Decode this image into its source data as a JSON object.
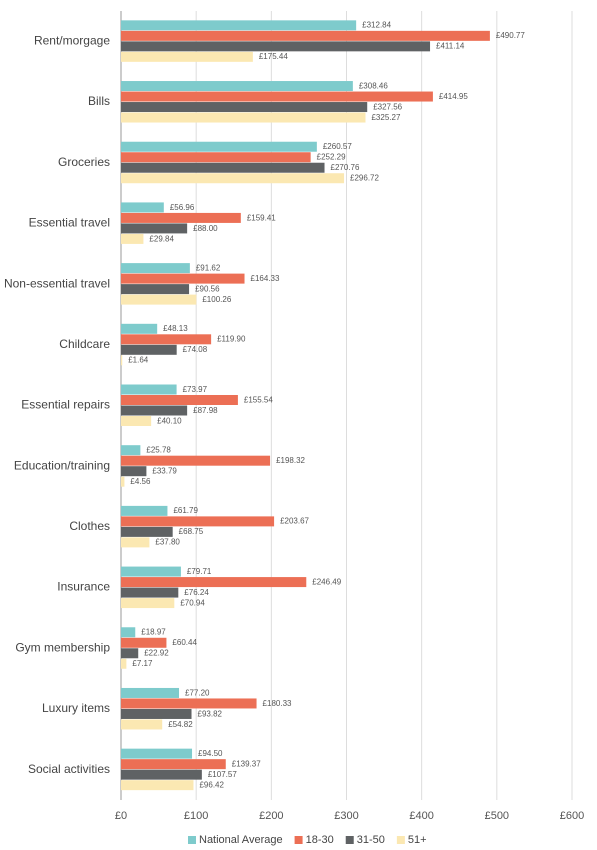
{
  "chart_data": {
    "type": "hbar",
    "categories": [
      "Rent/morgage",
      "Bills",
      "Groceries",
      "Essential travel",
      "Non-essential travel",
      "Childcare",
      "Essential repairs",
      "Education/training",
      "Clothes",
      "Insurance",
      "Gym membership",
      "Luxury items",
      "Social activities"
    ],
    "series": [
      {
        "name": "National Average",
        "color": "#7ecbcc",
        "values": [
          312.84,
          308.46,
          260.57,
          56.96,
          91.62,
          48.13,
          73.97,
          25.78,
          61.79,
          79.71,
          18.97,
          77.2,
          94.5
        ],
        "value_labels": [
          "£312.84",
          "£308.46",
          "£260.57",
          "£56.96",
          "£91.62",
          "£48.13",
          "£73.97",
          "£25.78",
          "£61.79",
          "£79.71",
          "£18.97",
          "£77.20",
          "£94.50"
        ]
      },
      {
        "name": "18-30",
        "color": "#ec6f55",
        "values": [
          490.77,
          414.95,
          252.29,
          159.41,
          164.33,
          119.9,
          155.54,
          198.32,
          203.67,
          246.49,
          60.44,
          180.33,
          139.37
        ],
        "value_labels": [
          "£490.77",
          "£414.95",
          "£252.29",
          "£159.41",
          "£164.33",
          "£119.90",
          "£155.54",
          "£198.32",
          "£203.67",
          "£246.49",
          "£60.44",
          "£180.33",
          "£139.37"
        ]
      },
      {
        "name": "31-50",
        "color": "#5f6264",
        "values": [
          411.14,
          327.56,
          270.76,
          88.0,
          90.56,
          74.08,
          87.98,
          33.79,
          68.75,
          76.24,
          22.92,
          93.82,
          107.57
        ],
        "value_labels": [
          "£411.14",
          "£327.56",
          "£270.76",
          "£88.00",
          "£90.56",
          "£74.08",
          "£87.98",
          "£33.79",
          "£68.75",
          "£76.24",
          "£22.92",
          "£93.82",
          "£107.57"
        ]
      },
      {
        "name": "51+",
        "color": "#fbe8b2",
        "values": [
          175.44,
          325.27,
          296.72,
          29.84,
          100.26,
          1.64,
          40.1,
          4.56,
          37.8,
          70.94,
          7.17,
          54.82,
          96.42
        ],
        "value_labels": [
          "£175.44",
          "£325.27",
          "£296.72",
          "£29.84",
          "£100.26",
          "£1.64",
          "£40.10",
          "£4.56",
          "£37.80",
          "£70.94",
          "£7.17",
          "£54.82",
          "£96.42"
        ]
      }
    ],
    "xlim": [
      0,
      600
    ],
    "xticks": [
      {
        "value": 0,
        "label": "£0"
      },
      {
        "value": 100,
        "label": "£100"
      },
      {
        "value": 200,
        "label": "£200"
      },
      {
        "value": 300,
        "label": "£300"
      },
      {
        "value": 400,
        "label": "£400"
      },
      {
        "value": 500,
        "label": "£500"
      },
      {
        "value": 600,
        "label": "£600"
      }
    ],
    "grid": true,
    "legend": "bottom"
  }
}
